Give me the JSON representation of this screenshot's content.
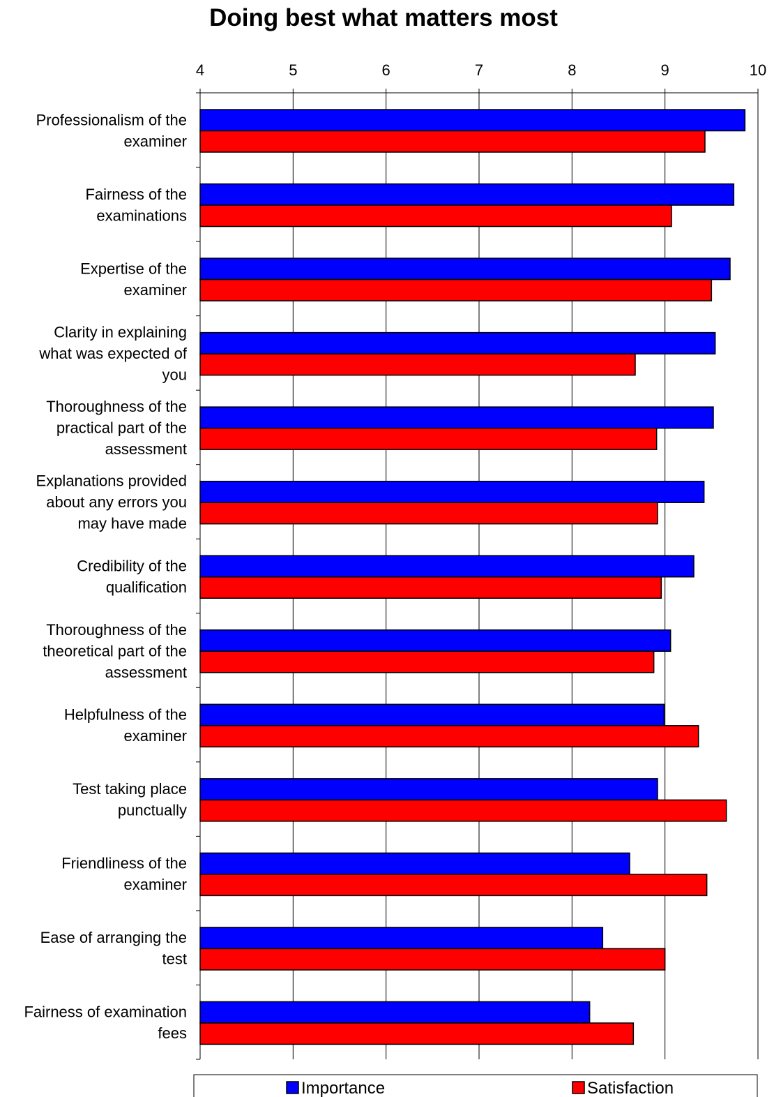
{
  "chart_data": {
    "type": "bar",
    "orientation": "horizontal",
    "title": "Doing best what matters most",
    "xlabel": "",
    "ylabel": "",
    "xlim": [
      4,
      10
    ],
    "x_ticks": [
      "4",
      "5",
      "6",
      "7",
      "8",
      "9",
      "10"
    ],
    "x_tick_position": "top",
    "grid": true,
    "legend_position": "bottom",
    "categories": [
      [
        "Professionalism of the",
        "examiner"
      ],
      [
        "Fairness of the",
        "examinations"
      ],
      [
        "Expertise of the",
        "examiner"
      ],
      [
        "Clarity in explaining",
        "what was expected of",
        "you"
      ],
      [
        "Thoroughness of the",
        "practical part of the",
        "assessment"
      ],
      [
        "Explanations provided",
        "about any errors you",
        "may have made"
      ],
      [
        "Credibility of the",
        "qualification"
      ],
      [
        "Thoroughness of the",
        "theoretical part of the",
        "assessment"
      ],
      [
        "Helpfulness of the",
        "examiner"
      ],
      [
        "Test taking place",
        "punctually"
      ],
      [
        "Friendliness of the",
        "examiner"
      ],
      [
        "Ease of arranging the",
        "test"
      ],
      [
        "Fairness of examination",
        "fees"
      ]
    ],
    "series": [
      {
        "name": "Importance",
        "color": "#0000FF",
        "values": [
          9.86,
          9.74,
          9.7,
          9.54,
          9.52,
          9.42,
          9.31,
          9.06,
          8.99,
          8.92,
          8.62,
          8.33,
          8.19
        ]
      },
      {
        "name": "Satisfaction",
        "color": "#FF0000",
        "values": [
          9.43,
          9.07,
          9.5,
          8.68,
          8.91,
          8.92,
          8.96,
          8.88,
          9.36,
          9.66,
          9.45,
          9.0,
          8.66
        ]
      }
    ]
  }
}
